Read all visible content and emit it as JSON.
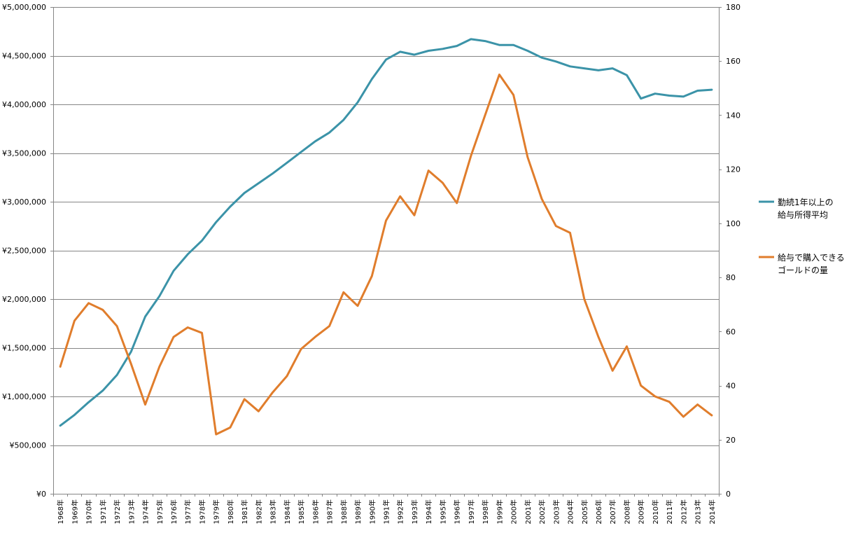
{
  "chart_data": {
    "type": "line",
    "categories": [
      "1968年",
      "1969年",
      "1970年",
      "1971年",
      "1972年",
      "1973年",
      "1974年",
      "1975年",
      "1976年",
      "1977年",
      "1978年",
      "1979年",
      "1980年",
      "1981年",
      "1982年",
      "1983年",
      "1984年",
      "1985年",
      "1986年",
      "1987年",
      "1988年",
      "1989年",
      "1990年",
      "1991年",
      "1992年",
      "1993年",
      "1994年",
      "1995年",
      "1996年",
      "1997年",
      "1998年",
      "1999年",
      "2000年",
      "2001年",
      "2002年",
      "2003年",
      "2004年",
      "2005年",
      "2006年",
      "2007年",
      "2008年",
      "2009年",
      "2010年",
      "2011年",
      "2012年",
      "2013年",
      "2014年"
    ],
    "y_left": {
      "ylim": [
        0,
        5000000
      ],
      "ticks": [
        0,
        500000,
        1000000,
        1500000,
        2000000,
        2500000,
        3000000,
        3500000,
        4000000,
        4500000,
        5000000
      ],
      "tick_labels": [
        "¥0",
        "¥500,000",
        "¥1,000,000",
        "¥1,500,000",
        "¥2,000,000",
        "¥2,500,000",
        "¥3,000,000",
        "¥3,500,000",
        "¥4,000,000",
        "¥4,500,000",
        "¥5,000,000"
      ]
    },
    "y_right": {
      "ylim": [
        0,
        180
      ],
      "ticks": [
        0,
        20,
        40,
        60,
        80,
        100,
        120,
        140,
        160,
        180
      ],
      "tick_labels": [
        "0",
        "20",
        "40",
        "60",
        "80",
        "100",
        "120",
        "140",
        "160",
        "180"
      ]
    },
    "series": [
      {
        "name_lines": [
          "勤続1年以上の",
          "給与所得平均"
        ],
        "axis": "left",
        "color": "#3b93a8",
        "values": [
          700000,
          810000,
          940000,
          1060000,
          1220000,
          1460000,
          1820000,
          2030000,
          2290000,
          2460000,
          2600000,
          2790000,
          2950000,
          3090000,
          3190000,
          3290000,
          3400000,
          3510000,
          3620000,
          3710000,
          3840000,
          4020000,
          4260000,
          4460000,
          4540000,
          4510000,
          4550000,
          4570000,
          4600000,
          4670000,
          4650000,
          4610000,
          4610000,
          4550000,
          4480000,
          4440000,
          4390000,
          4370000,
          4350000,
          4370000,
          4300000,
          4060000,
          4110000,
          4090000,
          4080000,
          4140000,
          4150000
        ]
      },
      {
        "name_lines": [
          "給与で購入できる",
          "ゴールドの量"
        ],
        "axis": "right",
        "color": "#e07d2c",
        "values": [
          47,
          64,
          70.5,
          68,
          62,
          48,
          33,
          47,
          58,
          61.5,
          59.5,
          22,
          24.5,
          35,
          30.5,
          37.5,
          43.5,
          53.5,
          58,
          62,
          74.5,
          69.5,
          80.5,
          101,
          110,
          103,
          119.5,
          115,
          107.5,
          125,
          140,
          155,
          147.5,
          124.5,
          109,
          99,
          96.5,
          72,
          58,
          45.5,
          54.5,
          40,
          36,
          34,
          28.5,
          33,
          29
        ]
      }
    ],
    "grid": true,
    "legend_position": "right"
  },
  "colors": {
    "grid": "#868686",
    "axis": "#868686",
    "background": "#ffffff"
  }
}
